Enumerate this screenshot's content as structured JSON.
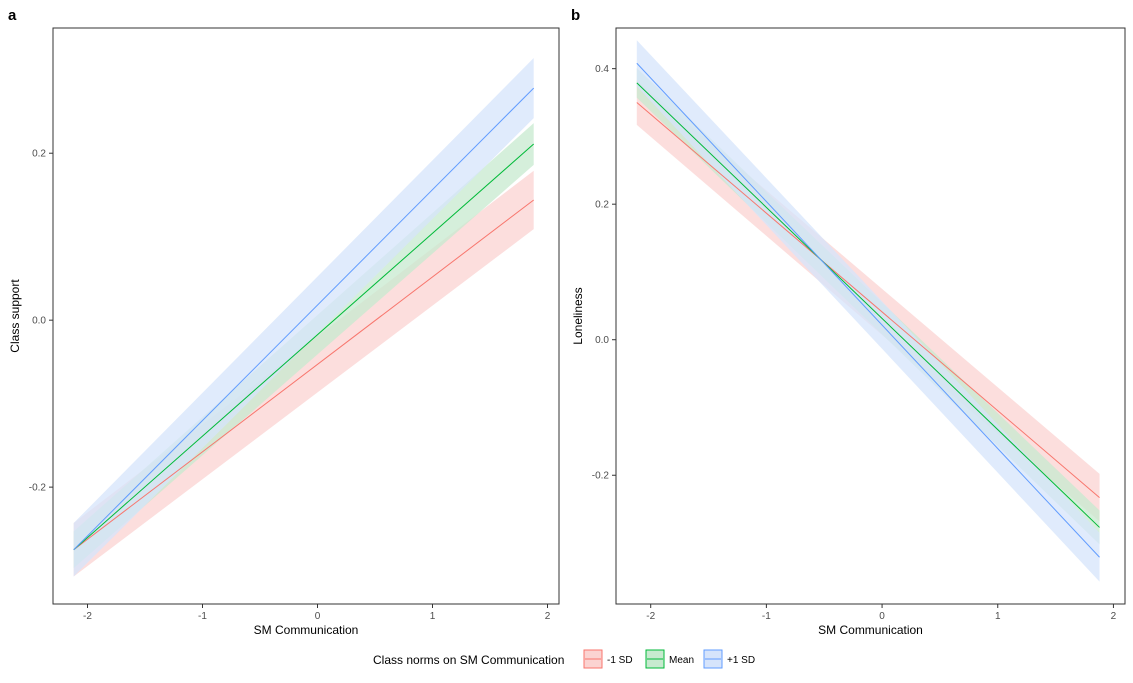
{
  "legend": {
    "title": "Class norms on SM Communication",
    "entries": [
      {
        "label": "-1 SD",
        "color": "#F8766D",
        "fill": "#FBD3D1"
      },
      {
        "label": "Mean",
        "color": "#00BA38",
        "fill": "#C7EACF"
      },
      {
        "label": "+1 SD",
        "color": "#619CFF",
        "fill": "#D6E4FB"
      }
    ]
  },
  "chart_data": [
    {
      "type": "line",
      "panel": "a",
      "title": "",
      "xlabel": "SM Communication",
      "ylabel": "Class support",
      "xlim": [
        -2.3,
        2.1
      ],
      "ylim": [
        -0.34,
        0.35
      ],
      "xticks": [
        -2,
        -1,
        0,
        1,
        2
      ],
      "xtick_labels": [
        "-2",
        "-1",
        "0",
        "1",
        "2"
      ],
      "yticks": [
        -0.2,
        0.0,
        0.2
      ],
      "ytick_labels": [
        "-0.2",
        "0.0",
        "0.2"
      ],
      "grid": false,
      "legend": "bottom",
      "x": [
        -2.12,
        1.88
      ],
      "series": [
        {
          "name": "-1 SD",
          "values": [
            -0.275,
            0.144
          ],
          "lower": [
            -0.307,
            0.109
          ],
          "upper": [
            -0.243,
            0.179
          ]
        },
        {
          "name": "Mean",
          "values": [
            -0.275,
            0.211
          ],
          "lower": [
            -0.297,
            0.186
          ],
          "upper": [
            -0.253,
            0.236
          ]
        },
        {
          "name": "+1 SD",
          "values": [
            -0.275,
            0.278
          ],
          "lower": [
            -0.307,
            0.242
          ],
          "upper": [
            -0.243,
            0.314
          ]
        }
      ]
    },
    {
      "type": "line",
      "panel": "b",
      "title": "",
      "xlabel": "SM Communication",
      "ylabel": "Loneliness",
      "xlim": [
        -2.3,
        2.1
      ],
      "ylim": [
        -0.39,
        0.46
      ],
      "xticks": [
        -2,
        -1,
        0,
        1,
        2
      ],
      "xtick_labels": [
        "-2",
        "-1",
        "0",
        "1",
        "2"
      ],
      "yticks": [
        -0.2,
        0.0,
        0.2,
        0.4
      ],
      "ytick_labels": [
        "-0.2",
        "0.0",
        "0.2",
        "0.4"
      ],
      "grid": false,
      "legend": "bottom",
      "x": [
        -2.12,
        1.88
      ],
      "series": [
        {
          "name": "-1 SD",
          "values": [
            0.35,
            -0.233
          ],
          "lower": [
            0.317,
            -0.268
          ],
          "upper": [
            0.383,
            -0.198
          ]
        },
        {
          "name": "Mean",
          "values": [
            0.379,
            -0.277
          ],
          "lower": [
            0.357,
            -0.302
          ],
          "upper": [
            0.401,
            -0.252
          ]
        },
        {
          "name": "+1 SD",
          "values": [
            0.408,
            -0.321
          ],
          "lower": [
            0.374,
            -0.357
          ],
          "upper": [
            0.442,
            -0.285
          ]
        }
      ]
    }
  ]
}
